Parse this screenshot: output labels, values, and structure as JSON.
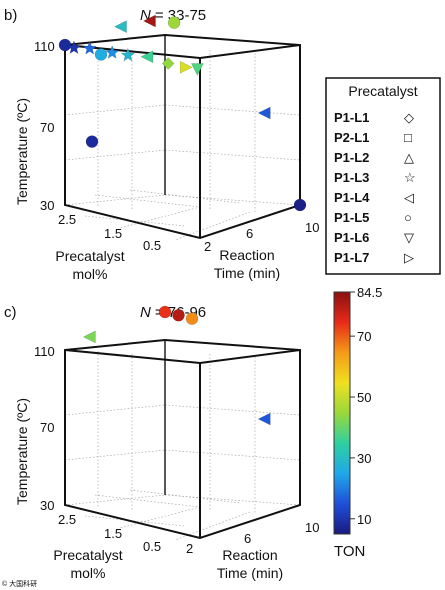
{
  "chart_data": [
    {
      "type": "scatter",
      "panel_letter": "b)",
      "title_prefix": "N",
      "title_suffix": "= 33-75",
      "ylabel": "Temperature (ºC)",
      "xlabel": "Precatalyst mol%",
      "xlabel_lines": [
        "Precatalyst",
        "mol%"
      ],
      "zlabel": "Reaction Time (min)",
      "zlabel_lines": [
        "Reaction",
        "Time (min)"
      ],
      "y_ticks": [
        "30",
        "70",
        "110"
      ],
      "x_ticks": [
        "2.5",
        "1.5",
        "0.5"
      ],
      "z_ticks": [
        "2",
        "6",
        "10"
      ],
      "ylim": [
        30,
        110
      ],
      "xlim": [
        0.5,
        2.5
      ],
      "zlim": [
        1,
        10
      ],
      "grid": true,
      "points": [
        {
          "mol": 2.5,
          "time": 1.0,
          "temp": 110,
          "ton": 8,
          "marker": "P1-L5"
        },
        {
          "mol": 2.4,
          "time": 1.2,
          "temp": 109,
          "ton": 10,
          "marker": "P1-L3"
        },
        {
          "mol": 2.2,
          "time": 1.4,
          "temp": 110,
          "ton": 18,
          "marker": "P1-L3"
        },
        {
          "mol": 2.0,
          "time": 1.2,
          "temp": 109,
          "ton": 26,
          "marker": "P1-L5"
        },
        {
          "mol": 1.9,
          "time": 1.6,
          "temp": 110,
          "ton": 22,
          "marker": "P1-L3"
        },
        {
          "mol": 1.7,
          "time": 1.8,
          "temp": 110,
          "ton": 28,
          "marker": "P1-L3"
        },
        {
          "mol": 1.5,
          "time": 2.3,
          "temp": 110,
          "ton": 36,
          "marker": "P1-L4"
        },
        {
          "mol": 1.3,
          "time": 3.0,
          "temp": 107,
          "ton": 44,
          "marker": "P1-L1"
        },
        {
          "mol": 1.1,
          "time": 3.4,
          "temp": 106,
          "ton": 52,
          "marker": "P1-L7"
        },
        {
          "mol": 1.0,
          "time": 3.8,
          "temp": 105,
          "ton": 38,
          "marker": "P1-L6"
        },
        {
          "mol": 2.5,
          "time": 6.0,
          "temp": 110,
          "ton": 30,
          "marker": "P1-L4"
        },
        {
          "mol": 2.4,
          "time": 8.0,
          "temp": 110,
          "ton": 82,
          "marker": "P1-L4"
        },
        {
          "mol": 2.2,
          "time": 9.0,
          "temp": 109,
          "ton": 45,
          "marker": "P1-L5"
        },
        {
          "mol": 2.1,
          "time": 1.0,
          "temp": 65,
          "ton": 8,
          "marker": "P1-L5"
        },
        {
          "mol": 0.7,
          "time": 8.0,
          "temp": 78,
          "ton": 16,
          "marker": "P1-L4"
        },
        {
          "mol": 0.5,
          "time": 10.0,
          "temp": 30,
          "ton": 6,
          "marker": "P1-L5"
        }
      ]
    },
    {
      "type": "scatter",
      "panel_letter": "c)",
      "title_prefix": "N",
      "title_suffix": "= 76-96",
      "ylabel": "Temperature (ºC)",
      "xlabel": "Precatalyst mol%",
      "xlabel_lines": [
        "Precatalyst",
        "mol%"
      ],
      "zlabel": "Reaction Time (min)",
      "zlabel_lines": [
        "Reaction",
        "Time (min)"
      ],
      "y_ticks": [
        "30",
        "70",
        "110"
      ],
      "x_ticks": [
        "2.5",
        "1.5",
        "0.5"
      ],
      "z_ticks": [
        "2",
        "6",
        "10"
      ],
      "ylim": [
        30,
        110
      ],
      "xlim": [
        0.5,
        2.5
      ],
      "zlim": [
        1,
        10
      ],
      "grid": true,
      "points": [
        {
          "mol": 2.5,
          "time": 3.2,
          "temp": 110,
          "ton": 42,
          "marker": "P1-L4"
        },
        {
          "mol": 2.5,
          "time": 10.0,
          "temp": 110,
          "ton": 74,
          "marker": "P1-L5"
        },
        {
          "mol": 2.3,
          "time": 10.0,
          "temp": 110,
          "ton": 80,
          "marker": "P1-L5"
        },
        {
          "mol": 2.1,
          "time": 10.0,
          "temp": 110,
          "ton": 66,
          "marker": "P1-L5"
        },
        {
          "mol": 0.7,
          "time": 8.0,
          "temp": 75,
          "ton": 16,
          "marker": "P1-L4"
        }
      ]
    }
  ],
  "legend": {
    "title": "Precatalyst",
    "items": [
      {
        "label": "P1-L1",
        "symbol": "◇"
      },
      {
        "label": "P2-L1",
        "symbol": "□"
      },
      {
        "label": "P1-L2",
        "symbol": "△"
      },
      {
        "label": "P1-L3",
        "symbol": "☆"
      },
      {
        "label": "P1-L4",
        "symbol": "◁"
      },
      {
        "label": "P1-L5",
        "symbol": "○"
      },
      {
        "label": "P1-L6",
        "symbol": "▽"
      },
      {
        "label": "P1-L7",
        "symbol": "▷"
      }
    ]
  },
  "colorbar": {
    "label": "TON",
    "min": 5,
    "max": 84.5,
    "ticks": [
      "84.5",
      "70",
      "50",
      "30",
      "10"
    ],
    "tick_values": [
      84.5,
      70,
      50,
      30,
      10
    ],
    "colors": [
      "#1a1a80",
      "#1f4fd8",
      "#20a8e8",
      "#2fd0a0",
      "#9ad83a",
      "#f0e020",
      "#f49a18",
      "#e82a18",
      "#8a1010"
    ]
  },
  "watermark": "© 大国科研"
}
